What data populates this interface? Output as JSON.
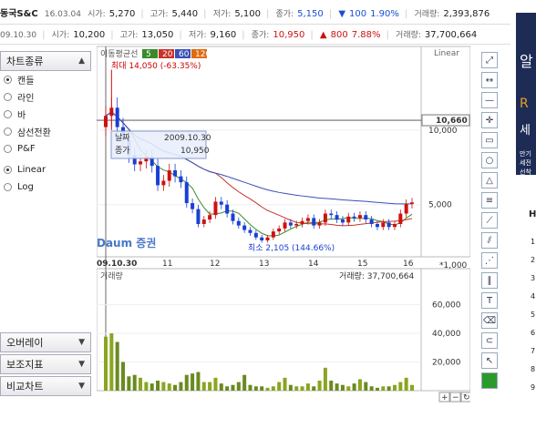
{
  "quote": {
    "name": "동국S&C",
    "date": "16.03.04",
    "open_label": "시가:",
    "open": "5,270",
    "high_label": "고가:",
    "high": "5,440",
    "low_label": "저가:",
    "low": "5,100",
    "close_label": "종가:",
    "close": "5,150",
    "change_symbol": "▼",
    "change": "100",
    "change_pct": "1.90%",
    "volume_label": "거래량:",
    "volume": "2,393,876"
  },
  "quote2": {
    "date": "09.10.30",
    "open_label": "시가:",
    "open": "10,200",
    "high_label": "고가:",
    "high": "13,050",
    "low_label": "저가:",
    "low": "9,160",
    "close_label": "종가:",
    "close": "10,950",
    "change_symbol": "▲",
    "change": "800",
    "change_pct": "7.88%",
    "volume_label": "거래량:",
    "volume": "37,700,664"
  },
  "sidebar": {
    "header": "차트종류",
    "chart_types": [
      "캔들",
      "라인",
      "바",
      "삼선전환",
      "P&F"
    ],
    "selected_type": "캔들",
    "scales": [
      "Linear",
      "Log"
    ],
    "selected_scale": "Linear",
    "bottom_sections": [
      "오버레이",
      "보조지표",
      "비교차트"
    ]
  },
  "chart_panel": {
    "ma_label": "이동평균선",
    "ma_periods": [
      "5",
      "20",
      "60",
      "120"
    ],
    "ma_colors": [
      "#3a8a2a",
      "#c8322a",
      "#3a4fb8",
      "#e06a10"
    ],
    "scale_label": "Linear",
    "max_label": "최대 14,050 (-63.35%)",
    "min_label": "최소 2,105 (144.66%)",
    "crosshair_price": "10,660",
    "tooltip_date_label": "날짜",
    "tooltip_date": "2009.10.30",
    "tooltip_close_label": "종가",
    "tooltip_close": "10,950",
    "x_start_label": "09.10.30",
    "x_ticks": [
      "11",
      "12",
      "13",
      "14",
      "15",
      "16"
    ],
    "y_ticks": [
      "10,000",
      "5,000"
    ],
    "watermark": "Daum 증권",
    "volume_label": "거래량",
    "volume_value_label": "거래량: 37,700,664",
    "volume_unit": "*1,000",
    "volume_ticks": [
      "60,000",
      "40,000",
      "20,000"
    ]
  },
  "chart_data": {
    "type": "candlestick",
    "x_labels": [
      "09.10.30",
      "11",
      "12",
      "13",
      "14",
      "15",
      "16"
    ],
    "y_range": [
      1500,
      15000
    ],
    "close_series": [
      10950,
      11500,
      10200,
      9300,
      8300,
      7700,
      7900,
      8200,
      7600,
      6300,
      6600,
      7300,
      6900,
      6500,
      5100,
      4700,
      3700,
      4000,
      4300,
      5200,
      5000,
      4400,
      3900,
      3600,
      3300,
      3100,
      2800,
      2600,
      2800,
      3200,
      3400,
      3800,
      3600,
      3700,
      3900,
      4100,
      3600,
      3800,
      4400,
      4300,
      4000,
      3800,
      4200,
      4100,
      4300,
      4000,
      3700,
      3500,
      3800,
      3500,
      3700,
      4400,
      5050,
      5150
    ],
    "volume_k": [
      37700,
      40000,
      34000,
      20000,
      10000,
      11000,
      9000,
      6000,
      5000,
      7000,
      6000,
      5000,
      4000,
      6000,
      11000,
      12000,
      13000,
      6000,
      6000,
      9000,
      5000,
      3000,
      4000,
      6000,
      11000,
      4000,
      3000,
      3000,
      2000,
      3000,
      6000,
      9000,
      4000,
      3000,
      3000,
      5000,
      3000,
      7000,
      16000,
      7000,
      5000,
      4000,
      3000,
      5000,
      8000,
      6000,
      3000,
      2000,
      3000,
      3000,
      4000,
      6000,
      9000,
      4000
    ],
    "volume_range": [
      0,
      75000
    ],
    "ma_series": [
      "5",
      "20",
      "60",
      "120"
    ]
  },
  "toolbar": {
    "buttons": [
      "expand-icon",
      "zoom-fit-icon",
      "horizontal-line-icon",
      "crosshair-icon",
      "rectangle-icon",
      "circle-icon",
      "triangle-icon",
      "fibonacci-icon",
      "trendline-icon",
      "channel-icon",
      "fan-icon",
      "parallel-icon",
      "text-icon",
      "eraser-icon",
      "magnet-icon",
      "pointer-icon",
      "color-swatch"
    ],
    "zoom_in": "+",
    "zoom_out": "−"
  },
  "ad": {
    "lines": [
      "알",
      "세",
      "만기",
      "세전",
      "선착"
    ]
  },
  "side_list": {
    "header": "H",
    "numbers": [
      "1",
      "2",
      "3",
      "4",
      "5",
      "6",
      "7",
      "8",
      "9"
    ]
  }
}
